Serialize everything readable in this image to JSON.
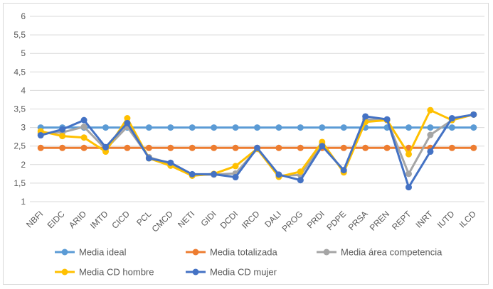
{
  "chart_data": {
    "type": "line",
    "title": "",
    "xlabel": "",
    "ylabel": "",
    "ylim": [
      1,
      6
    ],
    "ytick_step": 0.5,
    "yticks": [
      "1",
      "1,5",
      "2",
      "2,5",
      "3",
      "3,5",
      "4",
      "4,5",
      "5",
      "5,5",
      "6"
    ],
    "grid": "horizontal",
    "legend": "bottom",
    "categories": [
      "NBFI",
      "EIDC",
      "ARID",
      "IMTD",
      "CICD",
      "PCL",
      "CMCD",
      "NETI",
      "GIDI",
      "DCDI",
      "IRCD",
      "DALI",
      "PROG",
      "PRDI",
      "PDPE",
      "PRSA",
      "PREN",
      "REPT",
      "INRT",
      "IUTD",
      "ILCD"
    ],
    "series": [
      {
        "name": "Media ideal",
        "color": "#5b9bd5",
        "values": [
          3,
          3,
          3,
          3,
          3,
          3,
          3,
          3,
          3,
          3,
          3,
          3,
          3,
          3,
          3,
          3,
          3,
          3,
          3,
          3,
          3
        ]
      },
      {
        "name": "Media totalizada",
        "color": "#ed7d31",
        "values": [
          2.45,
          2.45,
          2.45,
          2.45,
          2.45,
          2.45,
          2.45,
          2.45,
          2.45,
          2.45,
          2.45,
          2.45,
          2.45,
          2.45,
          2.45,
          2.45,
          2.45,
          2.45,
          2.45,
          2.45,
          2.45
        ]
      },
      {
        "name": "Media área competencia",
        "color": "#a5a5a5",
        "values": [
          2.85,
          2.87,
          3.02,
          2.42,
          3.02,
          2.2,
          2.03,
          1.72,
          1.73,
          1.76,
          2.42,
          1.7,
          1.72,
          2.55,
          1.82,
          3.22,
          3.2,
          1.75,
          2.8,
          3.2,
          3.35
        ]
      },
      {
        "name": "Media CD hombre",
        "color": "#ffc000",
        "values": [
          2.9,
          2.77,
          2.73,
          2.35,
          3.25,
          2.17,
          1.97,
          1.7,
          1.75,
          1.96,
          2.43,
          1.67,
          1.81,
          2.61,
          1.79,
          3.15,
          3.2,
          2.28,
          3.47,
          3.2,
          3.35
        ]
      },
      {
        "name": "Media CD mujer",
        "color": "#4472c4",
        "values": [
          2.79,
          2.95,
          3.2,
          2.47,
          3.12,
          2.17,
          2.05,
          1.74,
          1.74,
          1.66,
          2.45,
          1.73,
          1.58,
          2.5,
          1.85,
          3.3,
          3.22,
          1.39,
          2.35,
          3.25,
          3.35
        ]
      }
    ]
  }
}
